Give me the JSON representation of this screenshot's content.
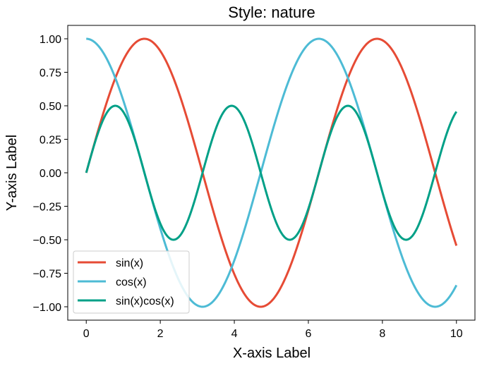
{
  "chart_data": {
    "type": "line",
    "title": "Style: nature",
    "xlabel": "X-axis Label",
    "ylabel": "Y-axis Label",
    "xlim": [
      -0.5,
      10.5
    ],
    "ylim": [
      -1.1,
      1.1
    ],
    "xticks": [
      0,
      2,
      4,
      6,
      8,
      10
    ],
    "xtick_labels": [
      "0",
      "2",
      "4",
      "6",
      "8",
      "10"
    ],
    "yticks": [
      -1.0,
      -0.75,
      -0.5,
      -0.25,
      0.0,
      0.25,
      0.5,
      0.75,
      1.0
    ],
    "ytick_labels": [
      "−1.00",
      "−0.75",
      "−0.50",
      "−0.25",
      "0.00",
      "0.25",
      "0.50",
      "0.75",
      "1.00"
    ],
    "grid": false,
    "legend_position": "bottom-left",
    "x_range": [
      0,
      10
    ],
    "series": [
      {
        "name": "sin(x)",
        "function": "sin",
        "color": "#e64b35"
      },
      {
        "name": "cos(x)",
        "function": "cos",
        "color": "#4dbbd5"
      },
      {
        "name": "sin(x)cos(x)",
        "function": "sincos",
        "color": "#00a087"
      }
    ]
  }
}
